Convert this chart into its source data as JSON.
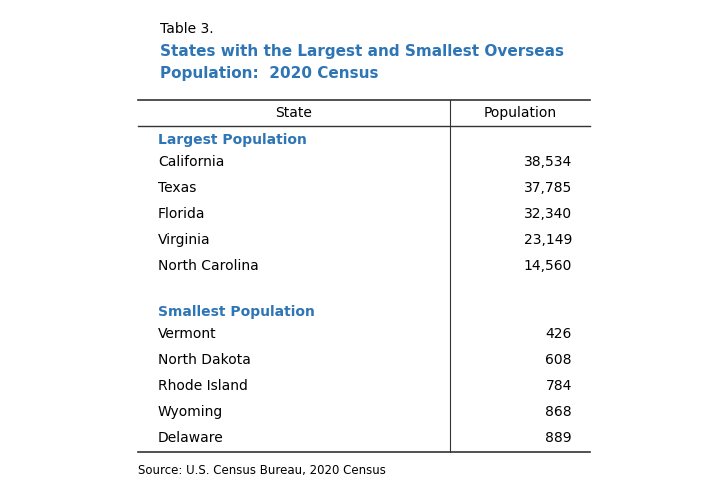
{
  "table_label": "Table 3.",
  "title_line1": "States with the Largest and Smallest Overseas",
  "title_line2": "Population:  2020 Census",
  "title_color": "#2E75B6",
  "table_label_color": "#000000",
  "col_headers": [
    "State",
    "Population"
  ],
  "section1_label": "Largest Population",
  "section1_color": "#2E75B6",
  "largest": [
    [
      "California",
      "38,534"
    ],
    [
      "Texas",
      "37,785"
    ],
    [
      "Florida",
      "32,340"
    ],
    [
      "Virginia",
      "23,149"
    ],
    [
      "North Carolina",
      "14,560"
    ]
  ],
  "section2_label": "Smallest Population",
  "section2_color": "#2E75B6",
  "smallest": [
    [
      "Vermont",
      "426"
    ],
    [
      "North Dakota",
      "608"
    ],
    [
      "Rhode Island",
      "784"
    ],
    [
      "Wyoming",
      "868"
    ],
    [
      "Delaware",
      "889"
    ]
  ],
  "source": "Source: U.S. Census Bureau, 2020 Census",
  "bg_color": "#FFFFFF",
  "text_color": "#000000",
  "line_color": "#333333",
  "figsize": [
    7.27,
    4.91
  ],
  "dpi": 100
}
